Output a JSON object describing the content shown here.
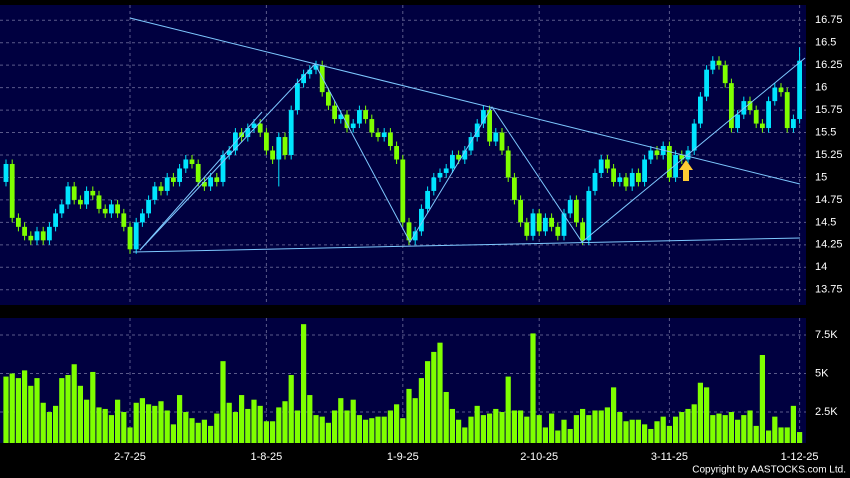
{
  "chart_data": {
    "type": "candlestick",
    "copyright": "Copyright by AASTOCKS.com Ltd.",
    "categories": [
      null,
      null,
      null,
      null,
      null,
      null,
      null,
      null,
      null,
      null,
      null,
      null,
      null,
      null,
      null,
      null,
      null,
      null,
      null,
      null,
      "2-7-25",
      null,
      null,
      null,
      null,
      null,
      null,
      null,
      null,
      null,
      null,
      null,
      null,
      null,
      null,
      null,
      null,
      null,
      null,
      null,
      null,
      null,
      "1-8-25",
      null,
      null,
      null,
      null,
      null,
      null,
      null,
      null,
      null,
      null,
      null,
      null,
      null,
      null,
      null,
      null,
      null,
      null,
      null,
      null,
      null,
      "1-9-25",
      null,
      null,
      null,
      null,
      null,
      null,
      null,
      null,
      null,
      null,
      null,
      null,
      null,
      null,
      null,
      null,
      null,
      null,
      null,
      null,
      null,
      "2-10-25",
      null,
      null,
      null,
      null,
      null,
      null,
      null,
      null,
      null,
      null,
      null,
      null,
      null,
      null,
      null,
      null,
      null,
      null,
      null,
      null,
      "3-11-25",
      null,
      null,
      null,
      null,
      null,
      null,
      null,
      null,
      null,
      null,
      null,
      null,
      null,
      null,
      null,
      null,
      null,
      null,
      null,
      null,
      "1-12-25"
    ],
    "open": [
      14.95,
      15.15,
      14.55,
      14.45,
      14.35,
      14.3,
      14.4,
      14.3,
      14.45,
      14.6,
      14.7,
      14.9,
      14.75,
      14.7,
      14.85,
      14.8,
      14.65,
      14.6,
      14.7,
      14.6,
      14.45,
      14.2,
      14.5,
      14.6,
      14.75,
      14.9,
      14.85,
      15.0,
      14.95,
      15.1,
      15.2,
      15.15,
      14.95,
      14.9,
      15.0,
      14.95,
      15.25,
      15.3,
      15.5,
      15.45,
      15.55,
      15.6,
      15.5,
      15.3,
      15.2,
      15.45,
      15.25,
      15.75,
      16.05,
      16.15,
      16.2,
      16.25,
      15.95,
      15.8,
      15.65,
      15.7,
      15.55,
      15.6,
      15.75,
      15.65,
      15.5,
      15.45,
      15.5,
      15.35,
      15.2,
      14.5,
      14.3,
      14.4,
      14.65,
      14.85,
      15.0,
      15.05,
      15.1,
      15.25,
      15.2,
      15.3,
      15.45,
      15.6,
      15.75,
      15.4,
      15.5,
      15.3,
      15.0,
      14.75,
      14.5,
      14.35,
      14.6,
      14.4,
      14.55,
      14.45,
      14.35,
      14.6,
      14.75,
      14.5,
      14.3,
      14.85,
      15.05,
      15.2,
      15.1,
      14.95,
      15.0,
      14.9,
      15.05,
      14.95,
      15.2,
      15.3,
      15.25,
      15.35,
      15.0,
      15.25,
      15.2,
      15.3,
      15.6,
      15.9,
      16.2,
      16.3,
      16.25,
      16.05,
      15.55,
      15.7,
      15.85,
      15.75,
      15.6,
      15.55,
      15.85,
      16.0,
      15.95,
      15.55,
      15.65
    ],
    "high": [
      15.2,
      15.2,
      14.6,
      14.5,
      14.4,
      14.45,
      14.45,
      14.5,
      14.65,
      14.75,
      14.95,
      14.95,
      14.8,
      14.9,
      14.9,
      14.85,
      14.7,
      14.75,
      14.75,
      14.65,
      14.5,
      14.55,
      14.65,
      14.8,
      14.95,
      14.95,
      15.05,
      15.05,
      15.15,
      15.25,
      15.25,
      15.2,
      15.0,
      15.05,
      15.05,
      15.3,
      15.35,
      15.55,
      15.55,
      15.6,
      15.65,
      15.65,
      15.55,
      15.35,
      15.5,
      15.5,
      15.8,
      16.1,
      16.2,
      16.25,
      16.3,
      16.3,
      16.0,
      15.85,
      15.75,
      15.75,
      15.65,
      15.8,
      15.8,
      15.7,
      15.55,
      15.55,
      15.55,
      15.4,
      15.25,
      14.55,
      14.45,
      14.7,
      14.9,
      15.05,
      15.1,
      15.15,
      15.3,
      15.3,
      15.35,
      15.5,
      15.65,
      15.8,
      15.8,
      15.55,
      15.55,
      15.35,
      15.05,
      14.8,
      14.55,
      14.65,
      14.65,
      14.6,
      14.6,
      14.5,
      14.65,
      14.8,
      14.8,
      14.55,
      14.9,
      15.1,
      15.25,
      15.25,
      15.15,
      15.05,
      15.05,
      15.1,
      15.1,
      15.25,
      15.35,
      15.35,
      15.4,
      15.4,
      15.3,
      15.3,
      15.35,
      15.65,
      15.95,
      16.25,
      16.35,
      16.35,
      16.3,
      16.1,
      15.75,
      15.9,
      15.9,
      15.8,
      15.65,
      15.9,
      16.05,
      16.05,
      16.0,
      15.7,
      16.45
    ],
    "low": [
      14.9,
      14.5,
      14.4,
      14.3,
      14.25,
      14.25,
      14.25,
      14.25,
      14.4,
      14.55,
      14.65,
      14.7,
      14.65,
      14.65,
      14.75,
      14.6,
      14.55,
      14.55,
      14.55,
      14.4,
      14.15,
      14.15,
      14.45,
      14.55,
      14.7,
      14.8,
      14.8,
      14.9,
      14.9,
      15.05,
      15.1,
      14.9,
      14.85,
      14.85,
      14.9,
      14.9,
      15.2,
      15.25,
      15.4,
      15.4,
      15.5,
      15.45,
      15.25,
      15.15,
      14.9,
      15.2,
      15.2,
      15.7,
      16.0,
      16.1,
      16.15,
      15.9,
      15.75,
      15.6,
      15.6,
      15.5,
      15.5,
      15.55,
      15.6,
      15.45,
      15.4,
      15.4,
      15.3,
      15.15,
      14.45,
      14.25,
      14.25,
      14.35,
      14.6,
      14.8,
      14.95,
      15.0,
      15.05,
      15.15,
      15.15,
      15.25,
      15.4,
      15.55,
      15.35,
      15.35,
      15.25,
      14.95,
      14.7,
      14.45,
      14.3,
      14.3,
      14.35,
      14.35,
      14.4,
      14.3,
      14.3,
      14.55,
      14.45,
      14.25,
      14.25,
      14.8,
      15.0,
      15.05,
      14.9,
      14.9,
      14.85,
      14.85,
      14.9,
      14.9,
      15.15,
      15.2,
      15.2,
      14.95,
      14.95,
      15.15,
      15.15,
      15.25,
      15.55,
      15.85,
      16.15,
      16.2,
      16.0,
      15.5,
      15.5,
      15.65,
      15.7,
      15.55,
      15.5,
      15.5,
      15.8,
      15.9,
      15.5,
      15.5,
      15.6
    ],
    "close": [
      15.15,
      14.55,
      14.45,
      14.35,
      14.3,
      14.4,
      14.3,
      14.45,
      14.6,
      14.7,
      14.9,
      14.75,
      14.7,
      14.85,
      14.8,
      14.65,
      14.6,
      14.7,
      14.6,
      14.45,
      14.2,
      14.5,
      14.6,
      14.75,
      14.9,
      14.85,
      15.0,
      14.95,
      15.1,
      15.2,
      15.15,
      14.95,
      14.9,
      15.0,
      14.95,
      15.25,
      15.3,
      15.5,
      15.45,
      15.55,
      15.6,
      15.5,
      15.3,
      15.2,
      15.45,
      15.25,
      15.75,
      16.05,
      16.15,
      16.2,
      16.25,
      15.95,
      15.8,
      15.65,
      15.7,
      15.55,
      15.6,
      15.75,
      15.65,
      15.5,
      15.45,
      15.5,
      15.35,
      15.2,
      14.5,
      14.3,
      14.4,
      14.65,
      14.85,
      15.0,
      15.05,
      15.1,
      15.25,
      15.2,
      15.3,
      15.45,
      15.6,
      15.75,
      15.4,
      15.5,
      15.3,
      15.0,
      14.75,
      14.5,
      14.35,
      14.6,
      14.4,
      14.55,
      14.45,
      14.35,
      14.6,
      14.75,
      14.5,
      14.3,
      14.85,
      15.05,
      15.2,
      15.1,
      14.95,
      15.0,
      14.9,
      15.05,
      14.95,
      15.2,
      15.3,
      15.25,
      15.35,
      15.0,
      15.25,
      15.2,
      15.3,
      15.6,
      15.9,
      16.2,
      16.3,
      16.25,
      16.05,
      15.55,
      15.7,
      15.85,
      15.75,
      15.6,
      15.55,
      15.85,
      16.0,
      15.95,
      15.55,
      15.65,
      16.3
    ],
    "volume": [
      4800,
      5000,
      4700,
      5200,
      4200,
      4700,
      3100,
      2500,
      2900,
      4700,
      4900,
      5600,
      4200,
      3300,
      5100,
      2800,
      2700,
      2300,
      3300,
      2500,
      1500,
      3100,
      3400,
      3000,
      2900,
      3200,
      2600,
      1700,
      3600,
      2500,
      2100,
      1800,
      2000,
      1600,
      2400,
      5800,
      3100,
      2500,
      3600,
      2700,
      3300,
      2900,
      1900,
      1900,
      2800,
      3200,
      4900,
      2600,
      8200,
      3600,
      2300,
      2200,
      1800,
      2600,
      3400,
      2600,
      3300,
      2300,
      2000,
      2100,
      2200,
      2200,
      2600,
      3000,
      2100,
      4000,
      3400,
      4700,
      5800,
      6400,
      7000,
      3800,
      2700,
      2000,
      1500,
      2200,
      2900,
      2300,
      2400,
      2700,
      2500,
      4800,
      2600,
      2600,
      2200,
      7600,
      2300,
      1500,
      2400,
      1300,
      2000,
      1400,
      2300,
      2700,
      2300,
      2600,
      2600,
      2800,
      4100,
      2500,
      1900,
      2000,
      2000,
      1700,
      1400,
      1900,
      2200,
      1600,
      2200,
      2500,
      2700,
      3000,
      4400,
      4100,
      2300,
      2400,
      2300,
      2500,
      2000,
      2300,
      2600,
      1600,
      6200,
      1300,
      2200,
      1500,
      1500,
      2900,
      1200
    ],
    "up_color": "#00e5ff",
    "down_color": "#7fff00",
    "volume_color": "#7fff00",
    "ylim": [
      13.58,
      16.92
    ],
    "yticks": [
      13.75,
      14,
      14.25,
      14.5,
      14.75,
      15,
      15.25,
      15.5,
      15.75,
      16,
      16.25,
      16.5,
      16.75
    ],
    "volume_ylim": [
      490,
      8600
    ],
    "volume_yticks": [
      {
        "value": 2500,
        "label": "2.5K"
      },
      {
        "value": 5000,
        "label": "5K"
      },
      {
        "value": 7500,
        "label": "7.5K"
      }
    ],
    "grid": true
  }
}
